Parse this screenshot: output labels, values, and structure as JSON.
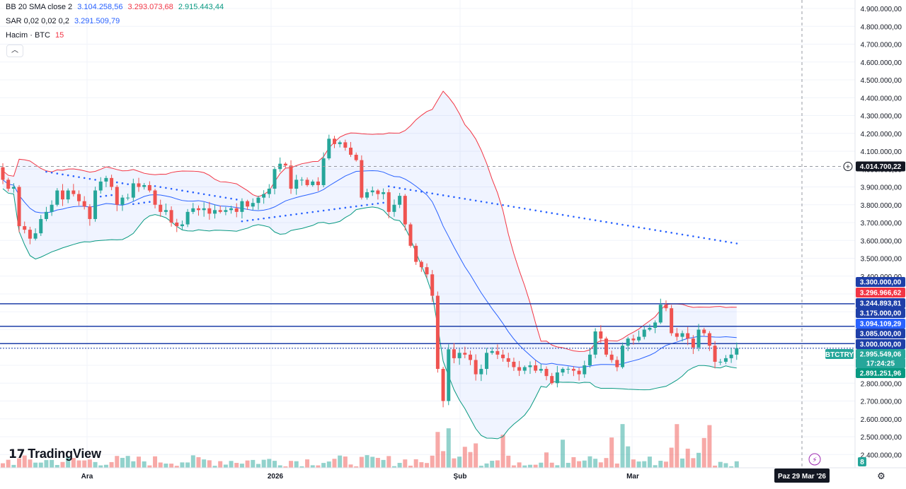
{
  "legend": {
    "bb": {
      "name": "BB 20 SMA close 2",
      "basis": "3.104.258,56",
      "upper": "3.293.073,68",
      "lower": "2.915.443,44"
    },
    "sar": {
      "name": "SAR 0,02 0,02 0,2",
      "value": "3.291.509,79"
    },
    "volume": {
      "name": "Hacim · BTC",
      "value": "15"
    }
  },
  "colors": {
    "up": "#26a69a",
    "down": "#ef5350",
    "bb_basis": "#2962ff",
    "bb_upper": "#f23645",
    "bb_lower": "#089981",
    "bb_fill": "#2962ff",
    "hline": "#1e3fa8",
    "sar": "#2962ff"
  },
  "brand": {
    "logo_text": "TradingView"
  },
  "collapse_icon": "chevron-up-icon",
  "x_labels": [
    "Ara",
    "2026",
    "Şub",
    "Mar"
  ],
  "crosshair_date": "Paz 29 Mar '26",
  "crosshair_price": "4.014.700,22",
  "symbol": "BTCTRY",
  "current_price": "2.995.549,06",
  "countdown": "17:24:25",
  "price_tags": [
    {
      "label": "3.300.000,00",
      "color": "#1e3fa8"
    },
    {
      "label": "3.296.966,62",
      "color": "#f23645"
    },
    {
      "label": "3.244.893,81",
      "color": "#1e3fa8"
    },
    {
      "label": "3.175.000,00",
      "color": "#1e3fa8"
    },
    {
      "label": "3.094.109,29",
      "color": "#2962ff"
    },
    {
      "label": "3.085.000,00",
      "color": "#1e3fa8"
    },
    {
      "label": "3.000.000,00",
      "color": "#1e3fa8"
    },
    {
      "label": "2.891.251,96",
      "color": "#089981"
    }
  ],
  "volume_badge": "8",
  "chart_data": {
    "type": "candlestick",
    "symbol": "BTCTRY",
    "y_ticks": [
      "4.900.000,00",
      "4.800.000,00",
      "4.700.000,00",
      "4.600.000,00",
      "4.500.000,00",
      "4.400.000,00",
      "4.300.000,00",
      "4.200.000,00",
      "4.100.000,00",
      "4.000.000,00",
      "3.900.000,00",
      "3.800.000,00",
      "3.700.000,00",
      "3.600.000,00",
      "3.500.000,00",
      "3.400.000,00",
      "3.300.000,00",
      "3.200.000,00",
      "3.100.000,00",
      "3.000.000,00",
      "2.900.000,00",
      "2.800.000,00",
      "2.700.000,00",
      "2.600.000,00",
      "2.500.000,00",
      "2.400.000,00"
    ],
    "ylim": [
      2400000,
      4950000
    ],
    "horizontal_lines": [
      3244893.81,
      3119000,
      3022000,
      2995549.06
    ],
    "closes": [
      3940000,
      3890000,
      3900000,
      3680000,
      3660000,
      3610000,
      3640000,
      3720000,
      3760000,
      3800000,
      3880000,
      3830000,
      3880000,
      3860000,
      3820000,
      3790000,
      3720000,
      3880000,
      3930000,
      3950000,
      3900000,
      3800000,
      3840000,
      3840000,
      3920000,
      3900000,
      3910000,
      3880000,
      3800000,
      3760000,
      3770000,
      3700000,
      3680000,
      3690000,
      3760000,
      3780000,
      3770000,
      3780000,
      3750000,
      3770000,
      3760000,
      3770000,
      3780000,
      3760000,
      3820000,
      3790000,
      3810000,
      3840000,
      3860000,
      3890000,
      4000000,
      4030000,
      4020000,
      3890000,
      3940000,
      3940000,
      3910000,
      3930000,
      3910000,
      4060000,
      4170000,
      4140000,
      4150000,
      4120000,
      4080000,
      4050000,
      3840000,
      3870000,
      3880000,
      3860000,
      3870000,
      3760000,
      3800000,
      3850000,
      3690000,
      3570000,
      3480000,
      3450000,
      3410000,
      3290000,
      2880000,
      2700000,
      2990000,
      2940000,
      2970000,
      2960000,
      2930000,
      2850000,
      2880000,
      2970000,
      2980000,
      2960000,
      2940000,
      2920000,
      2890000,
      2870000,
      2890000,
      2900000,
      2870000,
      2880000,
      2840000,
      2800000,
      2860000,
      2880000,
      2880000,
      2870000,
      2850000,
      2900000,
      2960000,
      3090000,
      3050000,
      2960000,
      2930000,
      2890000,
      3010000,
      3050000,
      3040000,
      3060000,
      3100000,
      3110000,
      3140000,
      3240000,
      3220000,
      3080000,
      3060000,
      3080000,
      3050000,
      3000000,
      3100000,
      3080000,
      3010000,
      2920000,
      2920000,
      2940000,
      2960000,
      2996000
    ]
  }
}
